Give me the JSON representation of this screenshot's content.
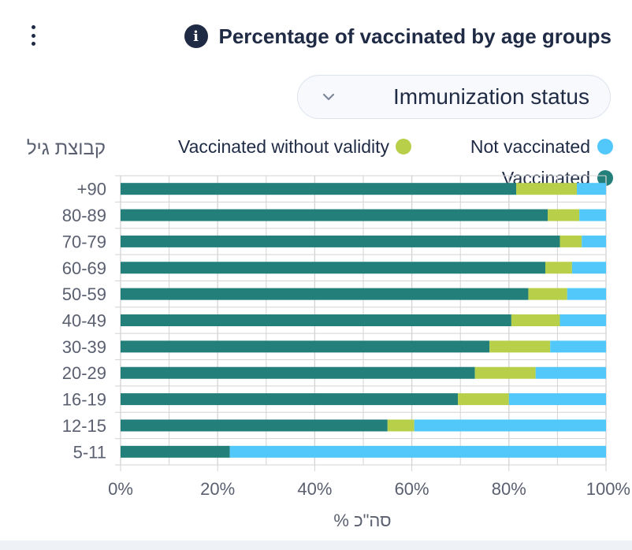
{
  "header": {
    "title": "Percentage of vaccinated by age groups",
    "info_icon": "info-icon",
    "menu_icon": "kebab-menu-icon"
  },
  "dropdown": {
    "label": "Immunization status",
    "icon": "chevron-down-icon"
  },
  "colors": {
    "vaccinated": "#237f7a",
    "without_validity": "#b8cf4a",
    "not_vaccinated": "#52c8fa",
    "grid": "#d3d3d3",
    "text": "#1f2a44",
    "axis_text": "#5b6070"
  },
  "chart_data": {
    "type": "bar",
    "orientation": "horizontal",
    "stacked": true,
    "categories": [
      "+90",
      "80-89",
      "70-79",
      "60-69",
      "50-59",
      "40-49",
      "30-39",
      "20-29",
      "16-19",
      "12-15",
      "5-11"
    ],
    "series": [
      {
        "name": "Vaccinated",
        "color": "#237f7a",
        "values": [
          81.5,
          88,
          90.5,
          87.5,
          84,
          80.5,
          76,
          73,
          69.5,
          55,
          22.5
        ]
      },
      {
        "name": "Vaccinated without validity",
        "color": "#b8cf4a",
        "values": [
          12.5,
          6.5,
          4.5,
          5.5,
          8,
          10,
          12.5,
          12.5,
          10.5,
          5.5,
          0
        ]
      },
      {
        "name": "Not vaccinated",
        "color": "#52c8fa",
        "values": [
          6,
          5.5,
          5,
          7,
          8,
          9.5,
          11.5,
          14.5,
          20,
          39.5,
          77.5
        ]
      }
    ],
    "legend_order": [
      "Vaccinated without validity",
      "Not vaccinated",
      "Vaccinated"
    ],
    "xlim": [
      0,
      100
    ],
    "xticks": [
      "0%",
      "20%",
      "40%",
      "60%",
      "80%",
      "100%"
    ],
    "xlabel": "% סה\"כ",
    "ylabel": "קבוצת גיל",
    "grid": true,
    "legend_position": "top"
  }
}
